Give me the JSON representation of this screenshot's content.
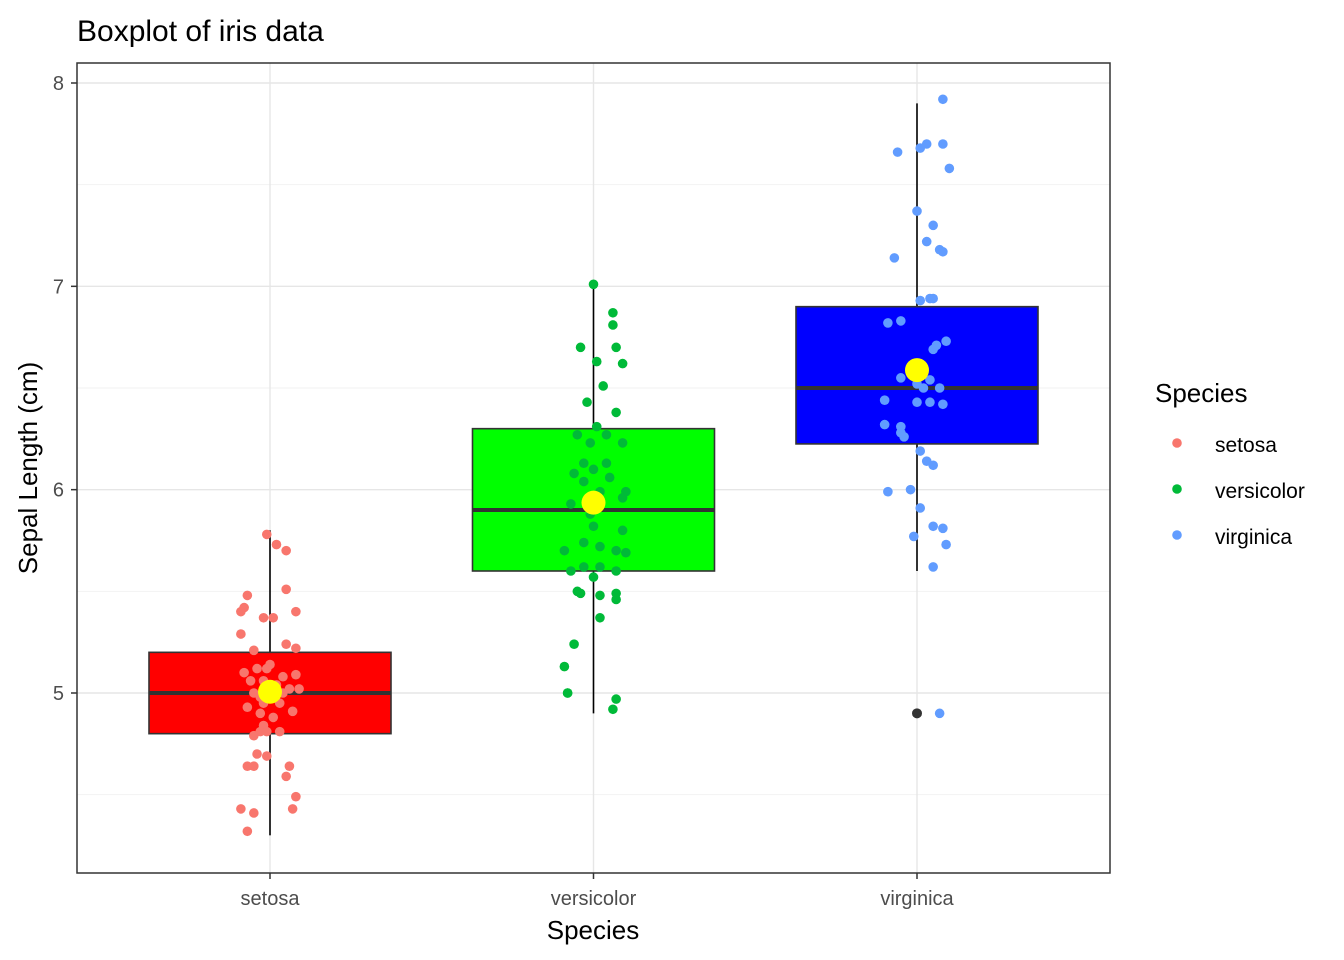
{
  "chart_data": {
    "type": "boxplot",
    "title": "Boxplot of iris data",
    "xlabel": "Species",
    "ylabel": "Sepal Length (cm)",
    "categories": [
      "setosa",
      "versicolor",
      "virginica"
    ],
    "ylim": [
      4.2,
      8.1
    ],
    "yticks": [
      5,
      6,
      7,
      8
    ],
    "grid": true,
    "legend": {
      "title": "Species",
      "position": "right",
      "entries": [
        "setosa",
        "versicolor",
        "virginica"
      ]
    },
    "box_fill_colors": [
      "#FF0000",
      "#00FF00",
      "#0000FF"
    ],
    "point_colors": [
      "#F8766D",
      "#00BA38",
      "#619CFF"
    ],
    "mean_color": "#FFFF00",
    "boxes": [
      {
        "name": "setosa",
        "whisker_low": 4.3,
        "q1": 4.8,
        "median": 5.0,
        "q3": 5.2,
        "whisker_high": 5.8,
        "mean": 5.006,
        "outliers": []
      },
      {
        "name": "versicolor",
        "whisker_low": 4.9,
        "q1": 5.6,
        "median": 5.9,
        "q3": 6.3,
        "whisker_high": 7.0,
        "mean": 5.936,
        "outliers": []
      },
      {
        "name": "virginica",
        "whisker_low": 5.6,
        "q1": 6.225,
        "median": 6.5,
        "q3": 6.9,
        "whisker_high": 7.9,
        "mean": 6.588,
        "outliers": [
          4.9
        ]
      }
    ],
    "points": [
      {
        "name": "setosa",
        "points": [
          [
            -0.01,
            5.78
          ],
          [
            0.02,
            5.73
          ],
          [
            0.05,
            5.7
          ],
          [
            0.05,
            5.51
          ],
          [
            -0.07,
            5.48
          ],
          [
            -0.08,
            5.42
          ],
          [
            -0.09,
            5.4
          ],
          [
            0.08,
            5.4
          ],
          [
            -0.02,
            5.37
          ],
          [
            0.01,
            5.37
          ],
          [
            -0.09,
            5.29
          ],
          [
            0.05,
            5.24
          ],
          [
            0.08,
            5.22
          ],
          [
            -0.05,
            5.21
          ],
          [
            0.0,
            5.14
          ],
          [
            -0.04,
            5.12
          ],
          [
            -0.01,
            5.12
          ],
          [
            -0.08,
            5.1
          ],
          [
            0.04,
            5.08
          ],
          [
            0.08,
            5.09
          ],
          [
            -0.06,
            5.06
          ],
          [
            -0.02,
            5.06
          ],
          [
            0.02,
            5.04
          ],
          [
            0.06,
            5.02
          ],
          [
            -0.05,
            5.0
          ],
          [
            0.0,
            5.0
          ],
          [
            0.04,
            5.0
          ],
          [
            0.09,
            5.02
          ],
          [
            -0.03,
            4.98
          ],
          [
            -0.02,
            4.95
          ],
          [
            -0.07,
            4.93
          ],
          [
            0.03,
            4.95
          ],
          [
            0.07,
            4.91
          ],
          [
            -0.03,
            4.9
          ],
          [
            0.01,
            4.88
          ],
          [
            -0.02,
            4.84
          ],
          [
            -0.03,
            4.81
          ],
          [
            -0.01,
            4.81
          ],
          [
            0.03,
            4.81
          ],
          [
            -0.05,
            4.79
          ],
          [
            -0.04,
            4.7
          ],
          [
            -0.01,
            4.69
          ],
          [
            -0.07,
            4.64
          ],
          [
            -0.05,
            4.64
          ],
          [
            0.06,
            4.64
          ],
          [
            0.05,
            4.59
          ],
          [
            0.08,
            4.49
          ],
          [
            0.07,
            4.43
          ],
          [
            -0.09,
            4.43
          ],
          [
            -0.05,
            4.41
          ],
          [
            -0.07,
            4.32
          ]
        ]
      },
      {
        "name": "versicolor",
        "points": [
          [
            0.0,
            7.01
          ],
          [
            0.06,
            6.87
          ],
          [
            0.06,
            6.81
          ],
          [
            -0.04,
            6.7
          ],
          [
            0.07,
            6.7
          ],
          [
            0.01,
            6.63
          ],
          [
            0.09,
            6.62
          ],
          [
            0.03,
            6.51
          ],
          [
            -0.02,
            6.43
          ],
          [
            0.07,
            6.38
          ],
          [
            0.01,
            6.31
          ],
          [
            -0.05,
            6.27
          ],
          [
            0.04,
            6.27
          ],
          [
            -0.01,
            6.23
          ],
          [
            0.09,
            6.23
          ],
          [
            0.04,
            6.13
          ],
          [
            -0.03,
            6.13
          ],
          [
            0.0,
            6.1
          ],
          [
            -0.06,
            6.08
          ],
          [
            0.05,
            6.06
          ],
          [
            -0.03,
            6.04
          ],
          [
            0.02,
            5.99
          ],
          [
            0.1,
            5.99
          ],
          [
            0.09,
            5.96
          ],
          [
            -0.07,
            5.93
          ],
          [
            -0.01,
            5.88
          ],
          [
            0.0,
            5.82
          ],
          [
            0.09,
            5.8
          ],
          [
            -0.03,
            5.74
          ],
          [
            0.02,
            5.72
          ],
          [
            -0.09,
            5.7
          ],
          [
            0.07,
            5.7
          ],
          [
            0.1,
            5.69
          ],
          [
            -0.03,
            5.62
          ],
          [
            0.02,
            5.62
          ],
          [
            0.07,
            5.6
          ],
          [
            -0.07,
            5.6
          ],
          [
            0.0,
            5.57
          ],
          [
            -0.05,
            5.5
          ],
          [
            -0.04,
            5.49
          ],
          [
            0.07,
            5.49
          ],
          [
            0.02,
            5.48
          ],
          [
            0.07,
            5.46
          ],
          [
            0.02,
            5.37
          ],
          [
            -0.06,
            5.24
          ],
          [
            -0.09,
            5.13
          ],
          [
            -0.08,
            5.0
          ],
          [
            -0.08,
            5.0
          ],
          [
            0.07,
            4.97
          ],
          [
            0.06,
            4.92
          ]
        ]
      },
      {
        "name": "virginica",
        "points": [
          [
            0.08,
            7.92
          ],
          [
            0.08,
            7.7
          ],
          [
            0.03,
            7.7
          ],
          [
            0.01,
            7.68
          ],
          [
            -0.06,
            7.66
          ],
          [
            0.1,
            7.58
          ],
          [
            0.0,
            7.37
          ],
          [
            0.05,
            7.3
          ],
          [
            0.03,
            7.22
          ],
          [
            0.07,
            7.18
          ],
          [
            0.08,
            7.17
          ],
          [
            -0.07,
            7.14
          ],
          [
            0.04,
            6.94
          ],
          [
            0.05,
            6.94
          ],
          [
            0.01,
            6.93
          ],
          [
            -0.05,
            6.83
          ],
          [
            -0.09,
            6.82
          ],
          [
            0.09,
            6.73
          ],
          [
            0.06,
            6.71
          ],
          [
            0.05,
            6.69
          ],
          [
            -0.05,
            6.55
          ],
          [
            0.04,
            6.54
          ],
          [
            0.0,
            6.52
          ],
          [
            0.07,
            6.5
          ],
          [
            0.02,
            6.5
          ],
          [
            -0.1,
            6.44
          ],
          [
            0.0,
            6.43
          ],
          [
            0.04,
            6.43
          ],
          [
            0.08,
            6.42
          ],
          [
            -0.1,
            6.32
          ],
          [
            -0.05,
            6.31
          ],
          [
            -0.05,
            6.28
          ],
          [
            -0.04,
            6.26
          ],
          [
            0.01,
            6.19
          ],
          [
            0.03,
            6.14
          ],
          [
            0.05,
            6.12
          ],
          [
            -0.09,
            5.99
          ],
          [
            -0.02,
            6.0
          ],
          [
            0.01,
            5.91
          ],
          [
            0.05,
            5.82
          ],
          [
            0.08,
            5.81
          ],
          [
            -0.01,
            5.77
          ],
          [
            0.09,
            5.73
          ],
          [
            0.05,
            5.62
          ],
          [
            0.07,
            4.9
          ]
        ]
      }
    ]
  }
}
